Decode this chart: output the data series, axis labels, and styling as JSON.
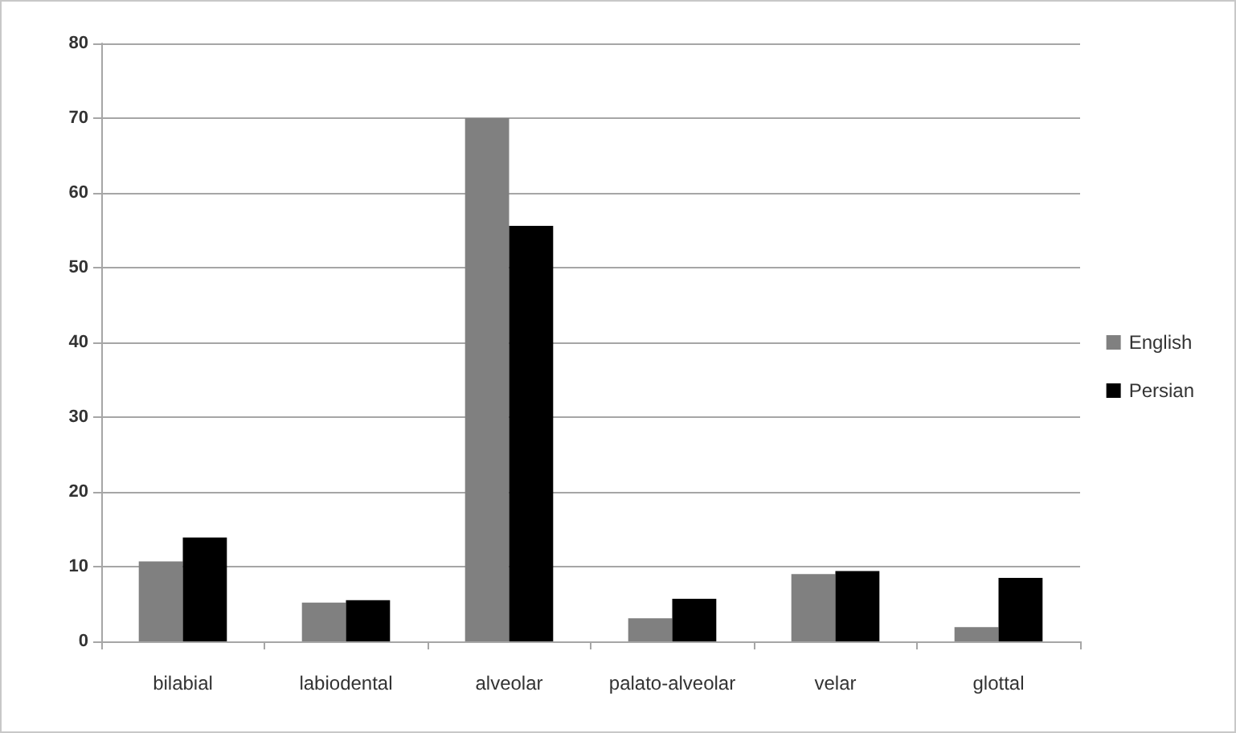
{
  "chart_data": {
    "type": "bar",
    "categories": [
      "bilabial",
      "labiodental",
      "alveolar",
      "palato-alveolar",
      "velar",
      "glottal"
    ],
    "series": [
      {
        "name": "English",
        "color": "#808080",
        "values": [
          10.7,
          5.2,
          70,
          3.1,
          9.0,
          1.9
        ]
      },
      {
        "name": "Persian",
        "color": "#000000",
        "values": [
          13.9,
          5.5,
          55.6,
          5.7,
          9.4,
          8.5
        ]
      }
    ],
    "ylim": [
      0,
      80
    ],
    "yticks": [
      0,
      10,
      20,
      30,
      40,
      50,
      60,
      70,
      80
    ],
    "grid": "y",
    "legend": "right"
  }
}
